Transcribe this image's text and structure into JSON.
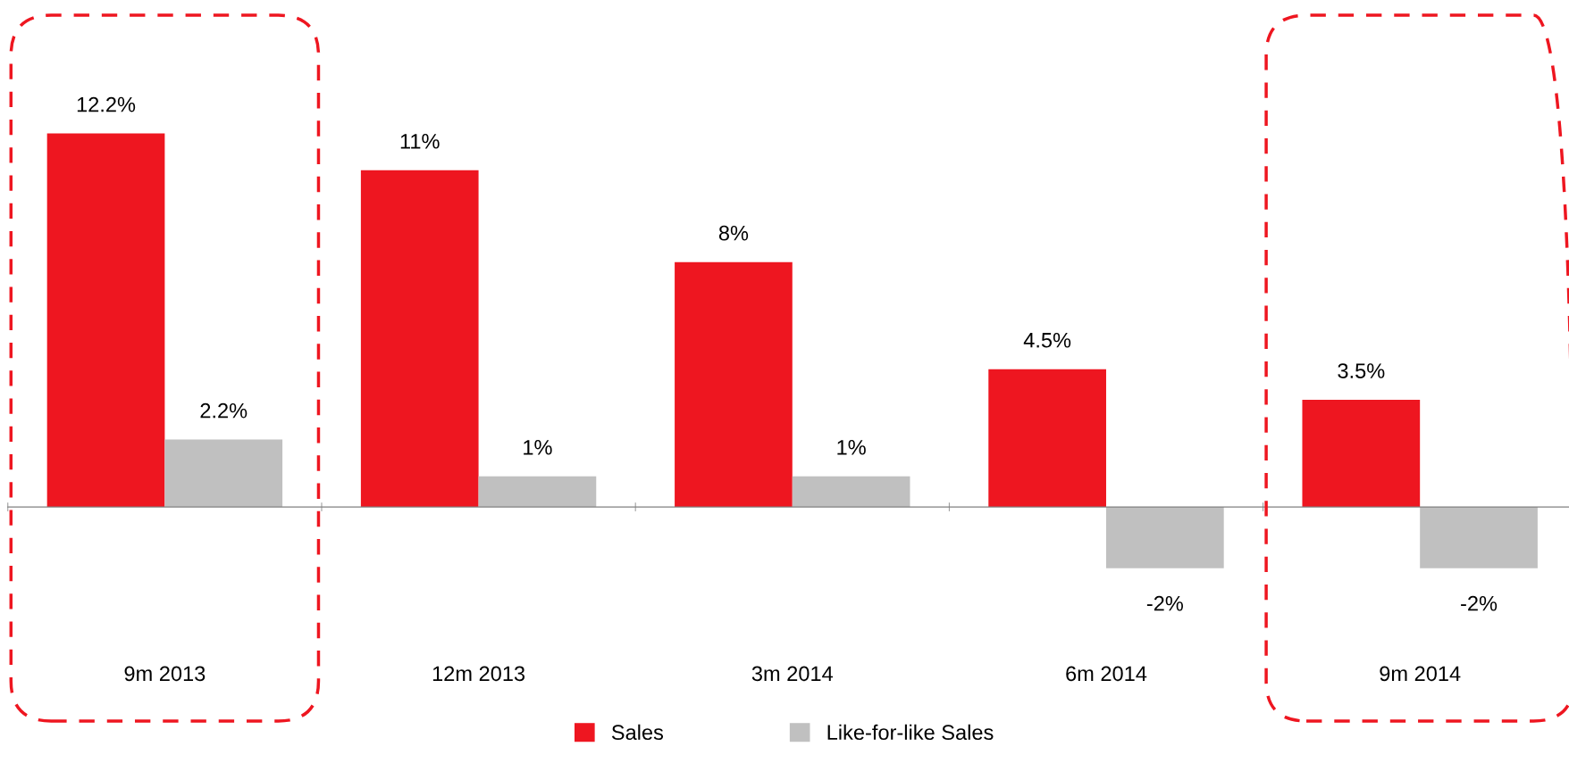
{
  "chart_data": {
    "type": "bar",
    "categories": [
      "9m 2013",
      "12m 2013",
      "3m 2014",
      "6m 2014",
      "9m 2014"
    ],
    "series": [
      {
        "name": "Sales",
        "color": "#ee1620",
        "values": [
          12.2,
          11,
          8,
          4.5,
          3.5
        ],
        "value_labels": [
          "12.2%",
          "11%",
          "8%",
          "4.5%",
          "3.5%"
        ]
      },
      {
        "name": "Like-for-like Sales",
        "color": "#c0c0c0",
        "values": [
          2.2,
          1,
          1,
          -2,
          -2
        ],
        "value_labels": [
          "2.2%",
          "1%",
          "1%",
          "-2%",
          "-2%"
        ]
      }
    ],
    "legend": "bottom",
    "grid": false
  }
}
